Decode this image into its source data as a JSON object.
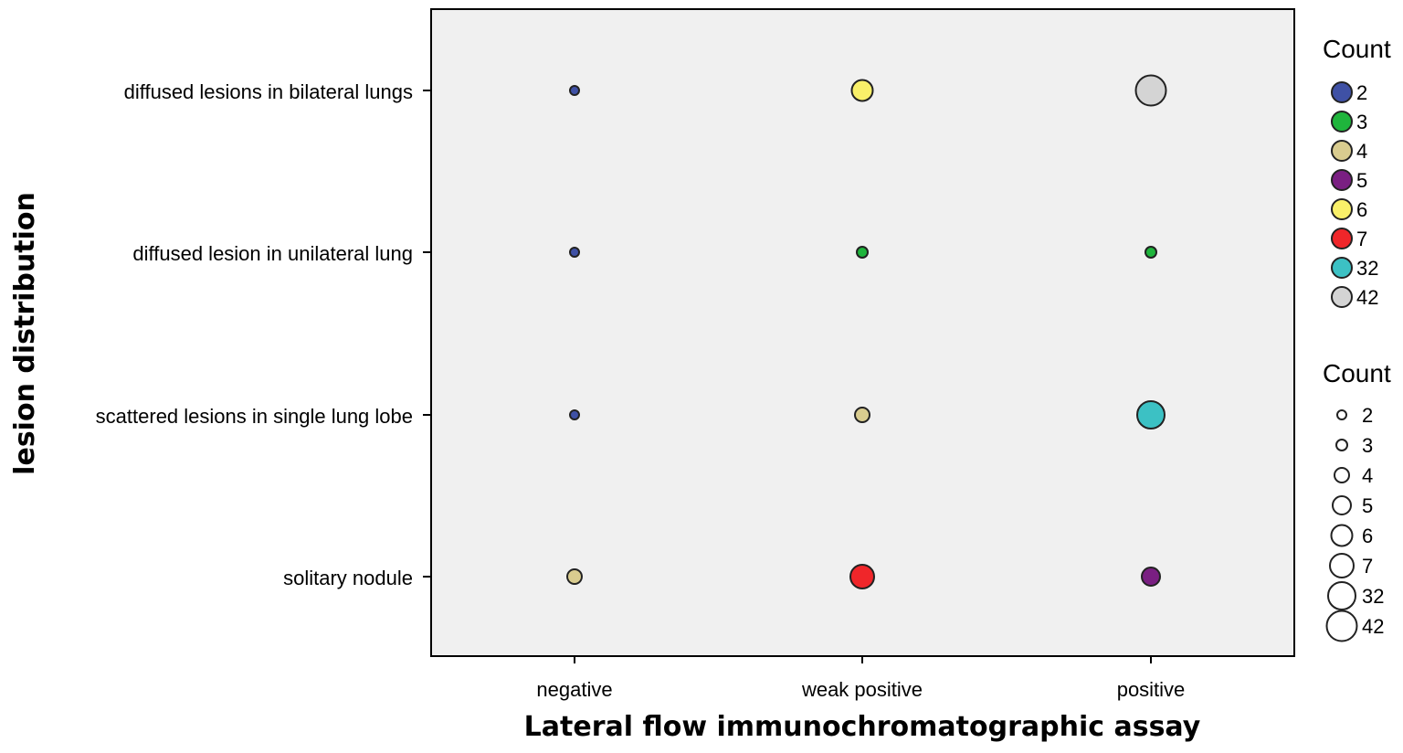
{
  "chart_data": {
    "type": "scatter",
    "title": "",
    "xlabel": "Lateral flow immunochromatographic assay",
    "ylabel": "lesion distribution",
    "x_categories": [
      "negative",
      "weak positive",
      "positive"
    ],
    "y_categories": [
      "diffused lesions in bilateral lungs",
      "diffused lesion in unilateral lung",
      "scattered lesions in single lung lobe",
      "solitary nodule"
    ],
    "points": [
      {
        "x": "negative",
        "y": "diffused lesions in bilateral lungs",
        "count": 2
      },
      {
        "x": "weak positive",
        "y": "diffused lesions in bilateral lungs",
        "count": 6
      },
      {
        "x": "positive",
        "y": "diffused lesions in bilateral lungs",
        "count": 42
      },
      {
        "x": "negative",
        "y": "diffused lesion in unilateral lung",
        "count": 2
      },
      {
        "x": "weak positive",
        "y": "diffused lesion in unilateral lung",
        "count": 3
      },
      {
        "x": "positive",
        "y": "diffused lesion in unilateral lung",
        "count": 3
      },
      {
        "x": "negative",
        "y": "scattered lesions in single lung lobe",
        "count": 2
      },
      {
        "x": "weak positive",
        "y": "scattered lesions in single lung lobe",
        "count": 4
      },
      {
        "x": "positive",
        "y": "scattered lesions in single lung lobe",
        "count": 32
      },
      {
        "x": "negative",
        "y": "solitary nodule",
        "count": 4
      },
      {
        "x": "weak positive",
        "y": "solitary nodule",
        "count": 7
      },
      {
        "x": "positive",
        "y": "solitary nodule",
        "count": 5
      }
    ],
    "grid": false,
    "plot_background": "#f0f0f0",
    "legend": {
      "placement": "right",
      "color_legend": {
        "title": "Count",
        "entries": [
          {
            "label": "2",
            "color": "#3f51a5"
          },
          {
            "label": "3",
            "color": "#1fb53c"
          },
          {
            "label": "4",
            "color": "#d9cc8f"
          },
          {
            "label": "5",
            "color": "#7a1f82"
          },
          {
            "label": "6",
            "color": "#f9f069"
          },
          {
            "label": "7",
            "color": "#f0262a"
          },
          {
            "label": "32",
            "color": "#3cc1c4"
          },
          {
            "label": "42",
            "color": "#d4d4d4"
          }
        ]
      },
      "size_legend": {
        "title": "Count",
        "entries": [
          "2",
          "3",
          "4",
          "5",
          "6",
          "7",
          "32",
          "42"
        ]
      }
    }
  }
}
